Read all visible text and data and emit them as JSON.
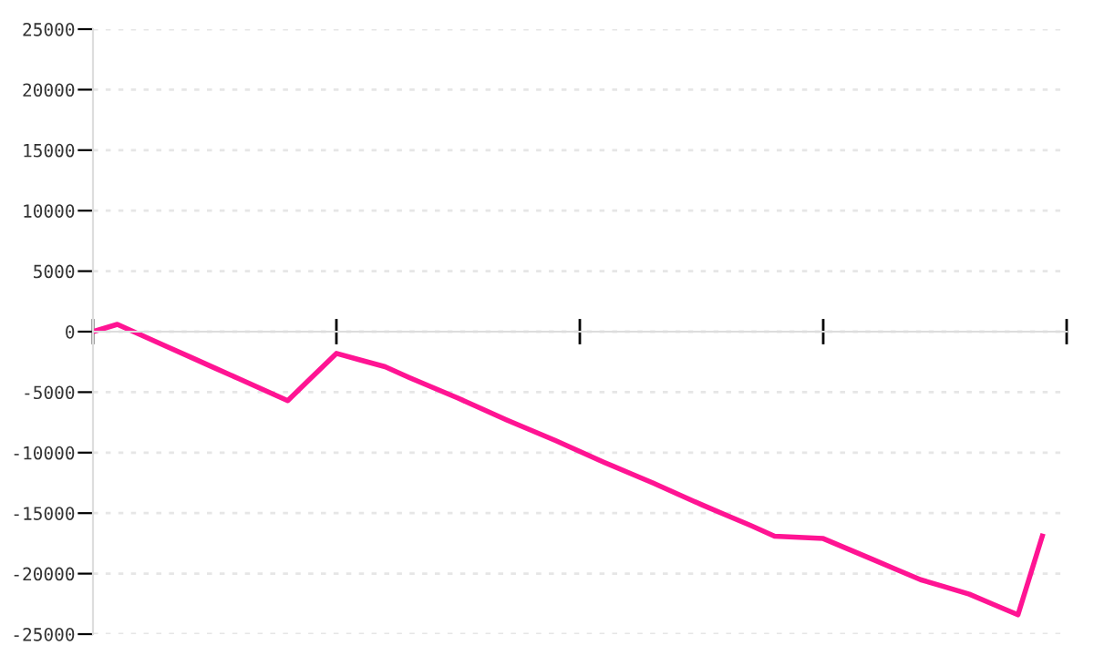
{
  "chart_data": {
    "type": "line",
    "categories": [
      null,
      null,
      null,
      null,
      null,
      null,
      null,
      null,
      null,
      null,
      null,
      null,
      null,
      null,
      null,
      null,
      null,
      null,
      null,
      null,
      null,
      null,
      null,
      null,
      null,
      null,
      null,
      null,
      null,
      null,
      null,
      null,
      null,
      null,
      null,
      null,
      null,
      null,
      null,
      null,
      null
    ],
    "series": [
      {
        "color": "#ff1493",
        "values": [
          0,
          600,
          -300,
          -1200,
          -2100,
          -3000,
          -3900,
          -4800,
          -5700,
          -3750,
          -1800,
          -2350,
          -2900,
          -3800,
          -4650,
          -5500,
          -6400,
          -7300,
          -8150,
          -9000,
          -9900,
          -10800,
          -11650,
          -12500,
          -13400,
          -14300,
          -15150,
          -16000,
          -16900,
          -17000,
          -17100,
          -17950,
          -18800,
          -19650,
          -20500,
          -21100,
          -21700,
          -22550,
          -23400,
          -16900,
          null
        ]
      }
    ],
    "ylim": [
      -25000,
      25000
    ],
    "yticks": [
      -25000,
      -20000,
      -15000,
      -10000,
      -5000,
      0,
      5000,
      10000,
      15000,
      20000,
      25000
    ],
    "grid": "y",
    "legend": false,
    "marker": "none",
    "line_style": "solid"
  }
}
